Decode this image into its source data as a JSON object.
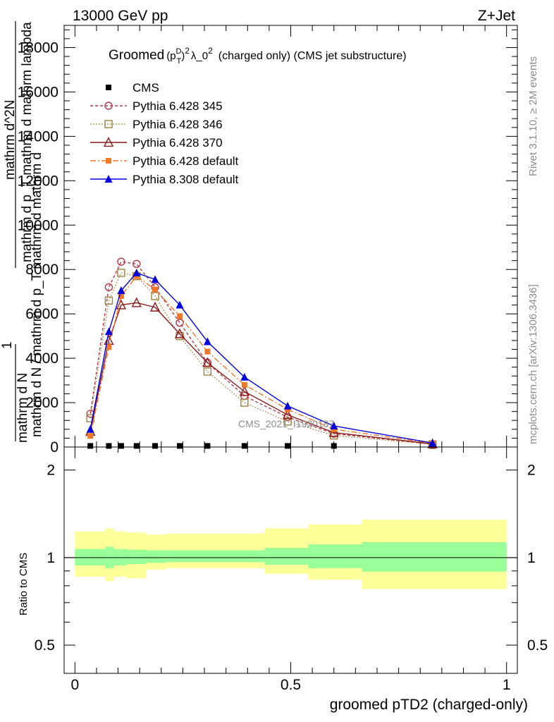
{
  "header": {
    "energy_label": "13000 GeV pp",
    "process_label": "Z+Jet"
  },
  "side_labels": {
    "rivet": "Rivet 3.1.10, ≥ 2M events",
    "mcplots": "mcplots.cern.ch [arXiv:1306.3436]"
  },
  "watermark": "CMS_2021_I1920187",
  "colors": {
    "cms": "#000000",
    "p345": "#b03a4a",
    "p346": "#a08040",
    "p370": "#8b1a1a",
    "p6def": "#f07828",
    "p8def": "#0000e0",
    "band_outer": "#ffff99",
    "band_inner": "#99ff99"
  },
  "chart_data": [
    {
      "type": "line",
      "title_parts": {
        "main": "Groomed",
        "sup_d": "D",
        "sub_t": "T",
        "sup_2": "2",
        "mid": "λ_0",
        "sup_2b": "2",
        "tail": "(charged only) (CMS jet substructure)"
      },
      "ylabel_lines": [
        "mathrm d N",
        "1",
        "mathrm d N / mathrm d p_T mathrm d mathrm d",
        "mathrm d^2N",
        "mathrm d p_T mathrm d mathrm lambda"
      ],
      "ylim": [
        0,
        19000
      ],
      "yticks": [
        0,
        2000,
        4000,
        6000,
        8000,
        10000,
        12000,
        14000,
        16000,
        18000
      ],
      "ytick_labels": [
        "0",
        "2000",
        "4000",
        "6000",
        "8000",
        "10000",
        "12000",
        "14000",
        "16000",
        "18000"
      ],
      "xlim": [
        -0.025,
        1.025
      ],
      "x": [
        0.0357,
        0.0785,
        0.1071,
        0.1428,
        0.1857,
        0.2428,
        0.3071,
        0.3928,
        0.4928,
        0.6,
        0.8285
      ],
      "legend": {
        "placement": "top-left",
        "entries": [
          "CMS",
          "Pythia 6.428 345",
          "Pythia 6.428 346",
          "Pythia 6.428 370",
          "Pythia 6.428 default",
          "Pythia 8.308 default"
        ]
      },
      "series": [
        {
          "name": "CMS",
          "values": [
            50,
            50,
            50,
            50,
            50,
            50,
            50,
            50,
            50,
            50,
            50
          ]
        },
        {
          "name": "Pythia 6.428 345",
          "values": [
            1500,
            7200,
            8350,
            8250,
            7200,
            5600,
            3800,
            2300,
            1350,
            600,
            130
          ]
        },
        {
          "name": "Pythia 6.428 346",
          "values": [
            1300,
            6600,
            7850,
            7700,
            6800,
            5000,
            3400,
            2000,
            1150,
            520,
            120
          ]
        },
        {
          "name": "Pythia 6.428 370",
          "values": [
            700,
            4800,
            6400,
            6500,
            6300,
            5100,
            3800,
            2500,
            1450,
            650,
            140
          ]
        },
        {
          "name": "Pythia 6.428 default",
          "values": [
            500,
            4500,
            6800,
            7700,
            7100,
            5900,
            4300,
            2800,
            1700,
            800,
            170
          ]
        },
        {
          "name": "Pythia 8.308 default",
          "values": [
            800,
            5200,
            7050,
            7850,
            7550,
            6400,
            4750,
            3150,
            1850,
            950,
            180
          ]
        }
      ]
    },
    {
      "type": "area",
      "ylabel": "Ratio to CMS",
      "ylim": [
        0.4,
        2.4
      ],
      "yticks": [
        0.5,
        1,
        2
      ],
      "ytick_labels": [
        "0.5",
        "1",
        "2"
      ],
      "xlim": [
        -0.025,
        1.025
      ],
      "xticks": [
        0,
        0.5,
        1
      ],
      "xtick_labels": [
        "0",
        "0.5",
        "1"
      ],
      "xlabel": "groomed pTD2 (charged-only)",
      "bins": [
        0,
        0.07,
        0.09,
        0.12,
        0.165,
        0.21,
        0.44,
        0.54,
        0.665,
        1
      ],
      "inner_lo": [
        0.94,
        0.92,
        0.94,
        0.95,
        0.96,
        0.965,
        0.945,
        0.92,
        0.895
      ],
      "inner_hi": [
        1.07,
        1.09,
        1.07,
        1.065,
        1.06,
        1.06,
        1.08,
        1.11,
        1.13
      ],
      "outer_lo": [
        0.86,
        0.83,
        0.86,
        0.85,
        0.91,
        0.92,
        0.88,
        0.84,
        0.78
      ],
      "outer_hi": [
        1.23,
        1.26,
        1.23,
        1.22,
        1.2,
        1.21,
        1.26,
        1.3,
        1.35
      ],
      "reference": 1
    }
  ]
}
